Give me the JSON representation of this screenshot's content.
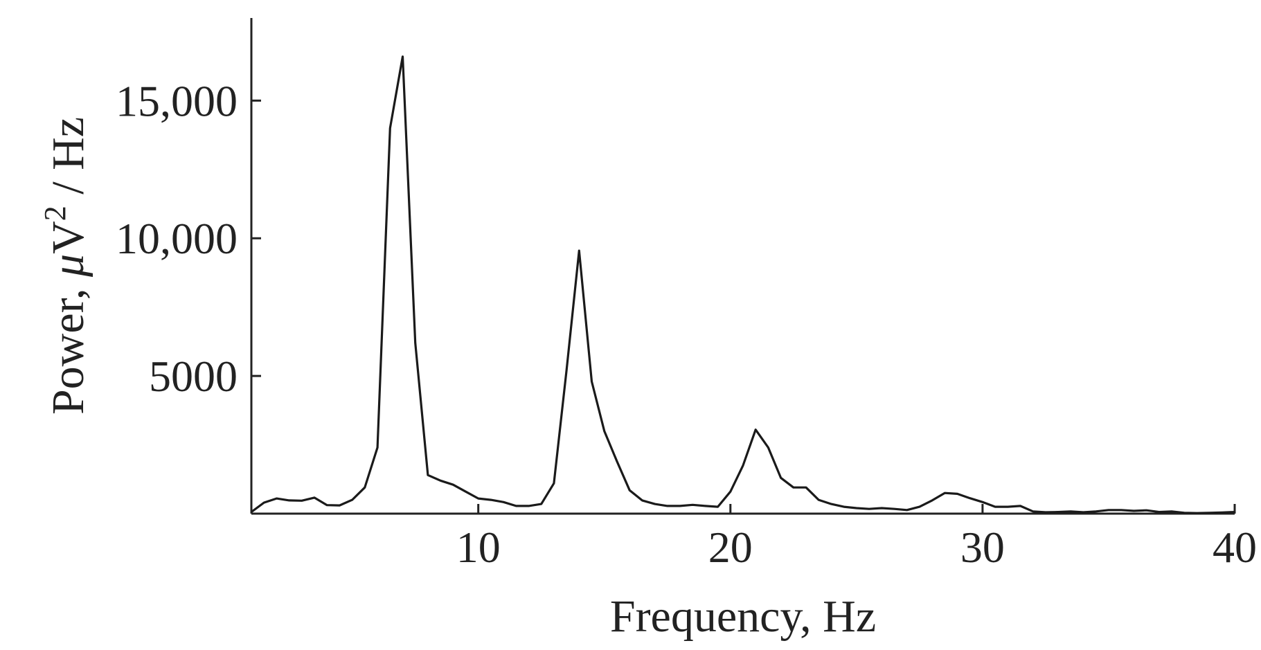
{
  "chart_data": {
    "type": "line",
    "title": "",
    "xlabel": "Frequency, Hz",
    "ylabel": {
      "prefix": "Power, ",
      "mu": "μ",
      "unit": "V",
      "sup": "2",
      "suffix": " / Hz"
    },
    "xlim": [
      1,
      40
    ],
    "ylim": [
      0,
      18000
    ],
    "xticks": [
      {
        "value": 10,
        "label": "10"
      },
      {
        "value": 20,
        "label": "20"
      },
      {
        "value": 30,
        "label": "30"
      },
      {
        "value": 40,
        "label": "40"
      }
    ],
    "yticks": [
      {
        "value": 5000,
        "label": "5000"
      },
      {
        "value": 10000,
        "label": "10,000"
      },
      {
        "value": 15000,
        "label": "15,000"
      }
    ],
    "grid": false,
    "line_color": "#1a1a1a",
    "series": [
      {
        "x": [
          1.0,
          1.5,
          2.0,
          2.5,
          3.0,
          3.5,
          4.0,
          4.5,
          5.0,
          5.5,
          6.0,
          6.5,
          7.0,
          7.5,
          8.0,
          8.5,
          9.0,
          9.5,
          10.0,
          10.5,
          11.0,
          11.5,
          12.0,
          12.5,
          13.0,
          13.5,
          14.0,
          14.5,
          15.0,
          15.5,
          16.0,
          16.5,
          17.0,
          17.5,
          18.0,
          18.5,
          19.0,
          19.5,
          20.0,
          20.5,
          21.0,
          21.5,
          22.0,
          22.5,
          23.0,
          23.5,
          24.0,
          24.5,
          25.0,
          25.5,
          26.0,
          26.5,
          27.0,
          27.5,
          28.0,
          28.5,
          29.0,
          29.5,
          30.0,
          30.5,
          31.0,
          31.5,
          32.0,
          32.5,
          33.0,
          33.5,
          34.0,
          34.5,
          35.0,
          35.5,
          36.0,
          36.5,
          37.0,
          37.5,
          38.0,
          38.5,
          39.0,
          39.5,
          40.0
        ],
        "y": [
          60,
          400,
          550,
          480,
          470,
          580,
          310,
          300,
          500,
          950,
          2400,
          14000,
          16600,
          6200,
          1400,
          1200,
          1050,
          800,
          550,
          500,
          420,
          280,
          280,
          350,
          1100,
          5200,
          9550,
          4800,
          3000,
          1900,
          850,
          480,
          350,
          280,
          280,
          320,
          280,
          250,
          800,
          1750,
          3050,
          2400,
          1300,
          950,
          950,
          500,
          350,
          250,
          200,
          170,
          200,
          170,
          130,
          250,
          480,
          750,
          720,
          560,
          420,
          250,
          250,
          280,
          80,
          50,
          60,
          80,
          50,
          80,
          130,
          130,
          100,
          120,
          60,
          80,
          30,
          20,
          30,
          40,
          60
        ]
      }
    ]
  }
}
